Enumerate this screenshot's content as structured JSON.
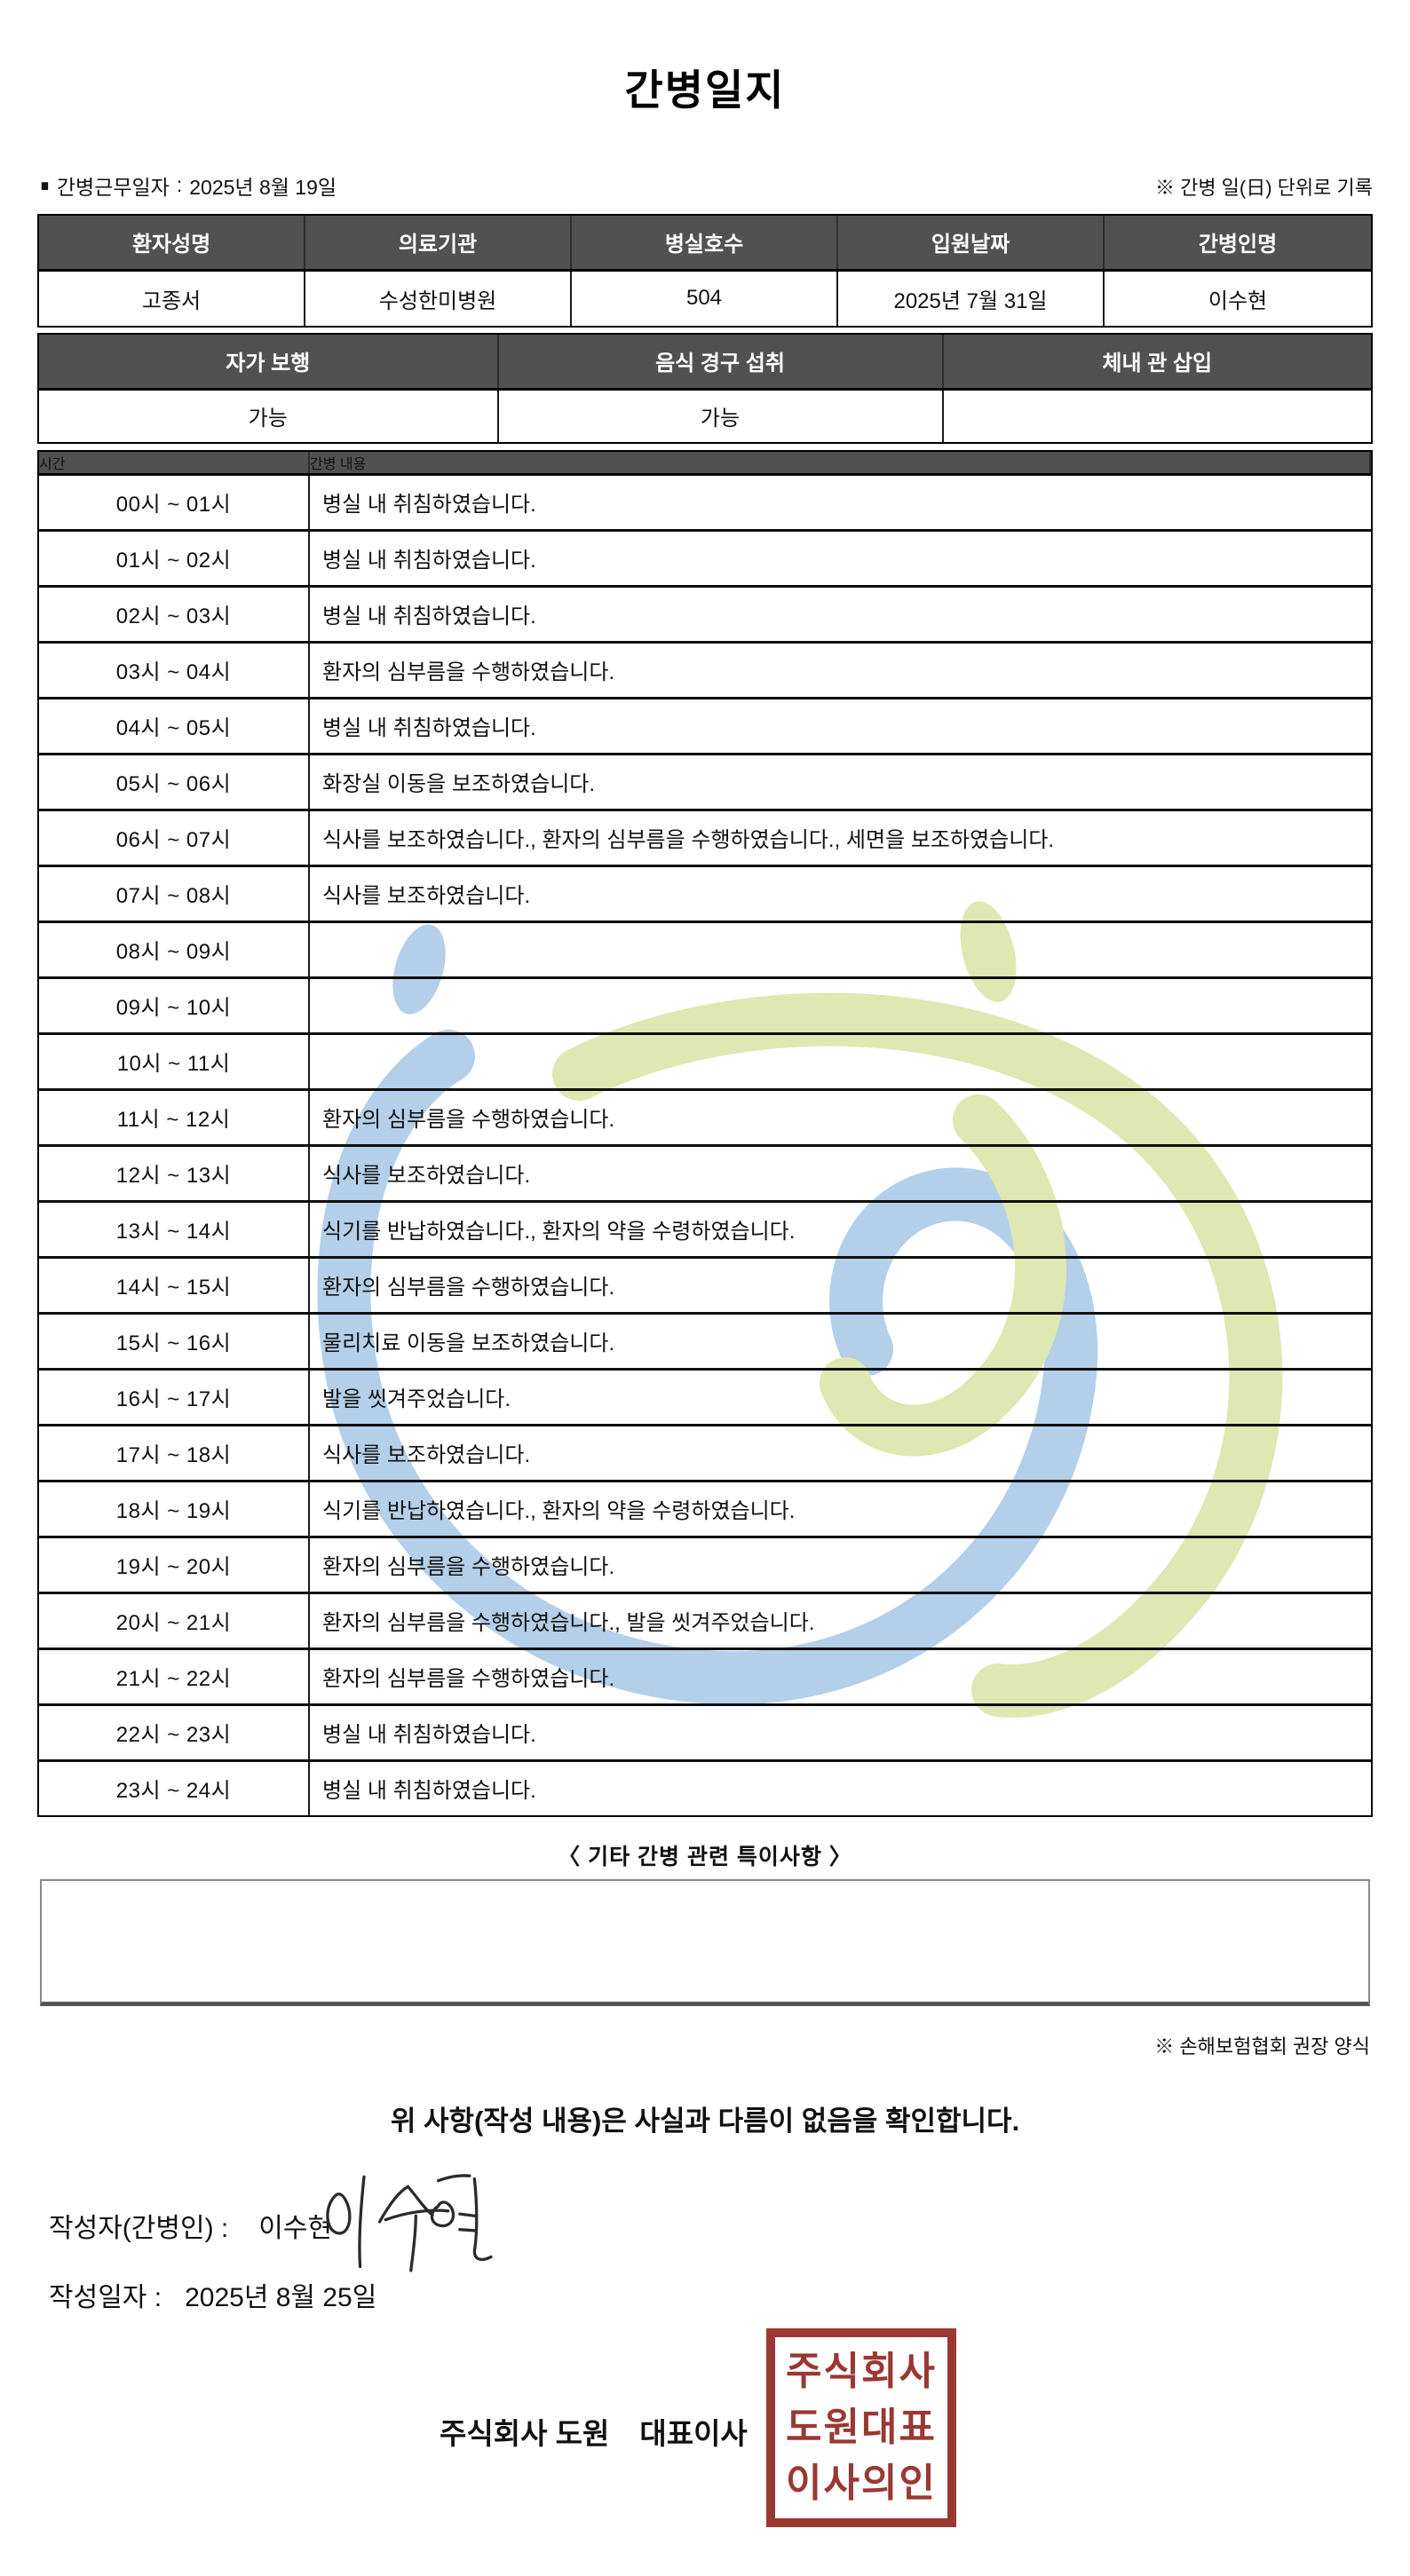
{
  "title": "간병일지",
  "meta": {
    "work_date_label": "간병근무일자",
    "separator": ":",
    "work_date_value": "2025년 8월 19일",
    "unit_note": "※ 간병 일(日) 단위로 기록"
  },
  "patient_table": {
    "headers": [
      "환자성명",
      "의료기관",
      "병실호수",
      "입원날짜",
      "간병인명"
    ],
    "values": [
      "고종서",
      "수성한미병원",
      "504",
      "2025년 7월 31일",
      "이수현"
    ]
  },
  "status_table": {
    "headers": [
      "자가 보행",
      "음식 경구 섭취",
      "체내 관 삽입"
    ],
    "values": [
      "가능",
      "가능",
      ""
    ]
  },
  "care_log": {
    "headers": [
      "시간",
      "간병 내용"
    ],
    "rows": [
      {
        "time": "00시 ~ 01시",
        "content": "병실 내 취침하였습니다."
      },
      {
        "time": "01시 ~ 02시",
        "content": "병실 내 취침하였습니다."
      },
      {
        "time": "02시 ~ 03시",
        "content": "병실 내 취침하였습니다."
      },
      {
        "time": "03시 ~ 04시",
        "content": "환자의 심부름을 수행하였습니다."
      },
      {
        "time": "04시 ~ 05시",
        "content": "병실 내 취침하였습니다."
      },
      {
        "time": "05시 ~ 06시",
        "content": "화장실 이동을 보조하였습니다."
      },
      {
        "time": "06시 ~ 07시",
        "content": "식사를 보조하였습니다., 환자의 심부름을 수행하였습니다., 세면을 보조하였습니다."
      },
      {
        "time": "07시 ~ 08시",
        "content": "식사를 보조하였습니다."
      },
      {
        "time": "08시 ~ 09시",
        "content": ""
      },
      {
        "time": "09시 ~ 10시",
        "content": ""
      },
      {
        "time": "10시 ~ 11시",
        "content": ""
      },
      {
        "time": "11시 ~ 12시",
        "content": "환자의 심부름을 수행하였습니다."
      },
      {
        "time": "12시 ~ 13시",
        "content": "식사를 보조하였습니다."
      },
      {
        "time": "13시 ~ 14시",
        "content": "식기를 반납하였습니다., 환자의 약을 수령하였습니다."
      },
      {
        "time": "14시 ~ 15시",
        "content": "환자의 심부름을 수행하였습니다."
      },
      {
        "time": "15시 ~ 16시",
        "content": "물리치료 이동을 보조하였습니다."
      },
      {
        "time": "16시 ~ 17시",
        "content": "발을 씻겨주었습니다."
      },
      {
        "time": "17시 ~ 18시",
        "content": "식사를 보조하였습니다."
      },
      {
        "time": "18시 ~ 19시",
        "content": "식기를 반납하였습니다., 환자의 약을 수령하였습니다."
      },
      {
        "time": "19시 ~ 20시",
        "content": "환자의 심부름을 수행하였습니다."
      },
      {
        "time": "20시 ~ 21시",
        "content": "환자의 심부름을 수행하였습니다., 발을 씻겨주었습니다."
      },
      {
        "time": "21시 ~ 22시",
        "content": "환자의 심부름을 수행하였습니다."
      },
      {
        "time": "22시 ~ 23시",
        "content": "병실 내 취침하였습니다."
      },
      {
        "time": "23시 ~ 24시",
        "content": "병실 내 취침하였습니다."
      }
    ]
  },
  "notes": {
    "box_title": "〈 기타 간병 관련 특이사항 〉",
    "box_content": "",
    "form_note": "※ 손해보험협회 권장 양식"
  },
  "footer": {
    "confirmation": "위 사항(작성 내용)은 사실과 다름이 없음을 확인합니다.",
    "writer_label": "작성자(간병인) :",
    "writer_name": "이수현",
    "date_label": "작성일자 :",
    "date_value": "2025년 8월 25일",
    "company_name": "주식회사 도원",
    "company_title": "대표이사",
    "seal_lines": [
      "주식회사",
      "도원대표",
      "이사의인"
    ]
  },
  "colors": {
    "table_header_bg": "#515151",
    "seal_red": "#9a3832",
    "watermark_blue": "#b3cfe9",
    "watermark_green": "#dfe7b2"
  }
}
